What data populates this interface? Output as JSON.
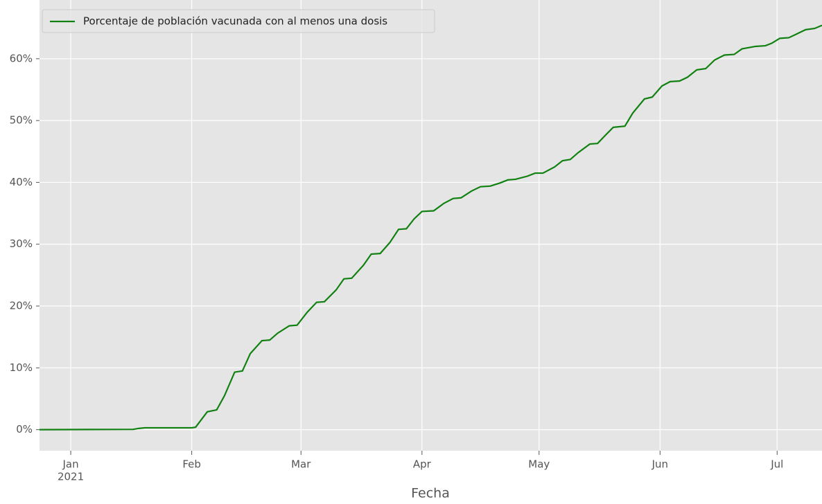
{
  "chart_data": {
    "type": "line",
    "xlabel": "Fecha",
    "x": [
      -8,
      16,
      17.4,
      19,
      31,
      32,
      35,
      37.4,
      39.4,
      42,
      44,
      46,
      49,
      51,
      53,
      56,
      58,
      60.6,
      63,
      65,
      68,
      70,
      72,
      75,
      77,
      79.3,
      81.8,
      84,
      86,
      88,
      90,
      93,
      95.6,
      98,
      100,
      102.7,
      105,
      107.5,
      110,
      112,
      114,
      117,
      119,
      121,
      124,
      126,
      128,
      130,
      133,
      135,
      136.8,
      139,
      142,
      144,
      147,
      149,
      151.5,
      153.6,
      156,
      158,
      160.4,
      162.7,
      165,
      167.5,
      170,
      172,
      175.5,
      178,
      179.6,
      181.7,
      184,
      186,
      188.3,
      190.6,
      192.5
    ],
    "series": [
      {
        "name": "Porcentaje de población vacunada con al menos una dosis",
        "color": "#108010",
        "values": [
          0,
          0.05,
          0.2,
          0.3,
          0.3,
          0.4,
          2.9,
          3.2,
          5.5,
          9.3,
          9.5,
          12.3,
          14.4,
          14.5,
          15.6,
          16.8,
          16.9,
          19.0,
          20.6,
          20.7,
          22.6,
          24.4,
          24.5,
          26.6,
          28.4,
          28.5,
          30.3,
          32.4,
          32.5,
          34.1,
          35.3,
          35.4,
          36.6,
          37.4,
          37.5,
          38.6,
          39.3,
          39.4,
          39.9,
          40.4,
          40.5,
          41.0,
          41.5,
          41.5,
          42.5,
          43.5,
          43.7,
          44.8,
          46.2,
          46.3,
          47.5,
          48.9,
          49.1,
          51.2,
          53.5,
          53.8,
          55.6,
          56.3,
          56.4,
          57.0,
          58.2,
          58.4,
          59.8,
          60.6,
          60.7,
          61.6,
          62.0,
          62.1,
          62.5,
          63.3,
          63.4,
          64.0,
          64.7,
          64.9,
          65.4
        ]
      }
    ],
    "xlim": [
      -8,
      192.5
    ],
    "xticks": [
      {
        "value": 0,
        "label": "Jan"
      },
      {
        "value": 31,
        "label": "Feb"
      },
      {
        "value": 59,
        "label": "Mar"
      },
      {
        "value": 90,
        "label": "Apr"
      },
      {
        "value": 120,
        "label": "May"
      },
      {
        "value": 151,
        "label": "Jun"
      },
      {
        "value": 181,
        "label": "Jul"
      }
    ],
    "x_year_label": "2021",
    "ylim": [
      -3.4,
      69.5
    ],
    "yticks": [
      {
        "value": 0,
        "label": "0%"
      },
      {
        "value": 10,
        "label": "10%"
      },
      {
        "value": 20,
        "label": "20%"
      },
      {
        "value": 30,
        "label": "30%"
      },
      {
        "value": 40,
        "label": "40%"
      },
      {
        "value": 50,
        "label": "50%"
      },
      {
        "value": 60,
        "label": "60%"
      }
    ],
    "grid": true,
    "legend": "upper left"
  }
}
